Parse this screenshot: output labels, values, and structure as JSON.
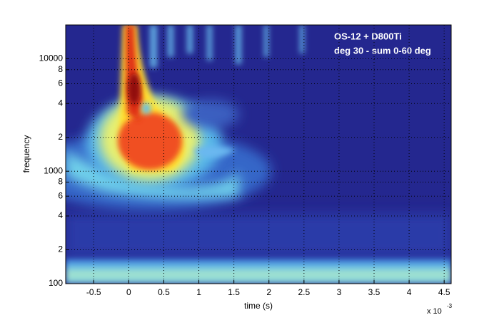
{
  "chart_data": {
    "type": "heatmap",
    "annotations": [
      "OS-12 + D800Ti",
      "deg 30 - sum 0-60 deg"
    ],
    "xlabel": "time (s)",
    "ylabel": "frequency",
    "x_multiplier": {
      "base": "x 10",
      "exponent": "-3"
    },
    "xlim": [
      -0.9,
      4.6
    ],
    "xticks": [
      -0.5,
      0,
      0.5,
      1,
      1.5,
      2,
      2.5,
      3,
      3.5,
      4,
      4.5
    ],
    "ylim": [
      100,
      20000
    ],
    "yscale": "log",
    "yticks": [
      100,
      {
        "value": 200,
        "label": "2"
      },
      {
        "value": 400,
        "label": "4"
      },
      {
        "value": 600,
        "label": "6"
      },
      {
        "value": 800,
        "label": "8"
      },
      1000,
      {
        "value": 2000,
        "label": "2"
      },
      {
        "value": 4000,
        "label": "4"
      },
      {
        "value": 6000,
        "label": "6"
      },
      {
        "value": 8000,
        "label": "8"
      },
      10000
    ],
    "grid": true
  }
}
